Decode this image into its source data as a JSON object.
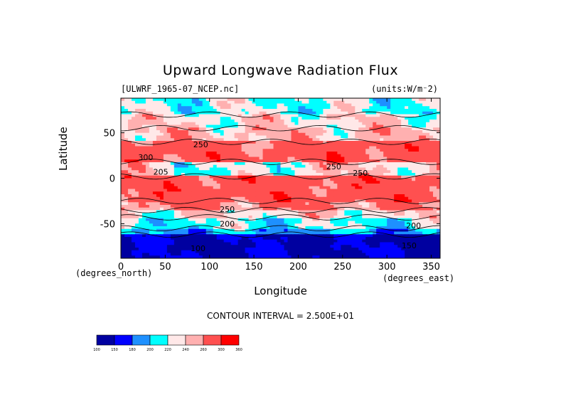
{
  "chart_data": {
    "type": "heatmap",
    "title": "Upward Longwave Radiation Flux",
    "subtitle_left": "[ULWRF_1965-07_NCEP.nc]",
    "subtitle_right": "(units:W/m⁻2)",
    "xlabel": "Longitude",
    "ylabel": "Latitude",
    "x_unit": "(degrees_east)",
    "y_unit": "(degrees_north)",
    "xlim": [
      0,
      360
    ],
    "ylim": [
      -90,
      90
    ],
    "x_ticks": [
      "0",
      "50",
      "100",
      "150",
      "200",
      "250",
      "300",
      "350"
    ],
    "x_tick_values": [
      0,
      50,
      100,
      150,
      200,
      250,
      300,
      350
    ],
    "y_ticks": [
      "50",
      "0",
      "-50"
    ],
    "y_tick_values": [
      50,
      0,
      -50
    ],
    "contour_interval_text": "CONTOUR INTERVAL = 2.500E+01",
    "colorbar": {
      "labels": [
        "100",
        "150",
        "180",
        "200",
        "220",
        "240",
        "260",
        "300",
        "360"
      ],
      "colors": [
        "#0000a0",
        "#0000ff",
        "#1e90ff",
        "#00ffff",
        "#ffe8e8",
        "#ffb0b0",
        "#ff5050",
        "#ff0000"
      ]
    },
    "contour_labels": [
      {
        "text": "250",
        "lon": 90,
        "lat": 37
      },
      {
        "text": "300",
        "lon": 28,
        "lat": 23
      },
      {
        "text": "205",
        "lon": 45,
        "lat": 7
      },
      {
        "text": "250",
        "lon": 240,
        "lat": 13
      },
      {
        "text": "250",
        "lon": 270,
        "lat": 6
      },
      {
        "text": "250",
        "lon": 120,
        "lat": -34
      },
      {
        "text": "200",
        "lon": 120,
        "lat": -50
      },
      {
        "text": "200",
        "lon": 330,
        "lat": -52
      },
      {
        "text": "100",
        "lon": 87,
        "lat": -77
      },
      {
        "text": "150",
        "lon": 325,
        "lat": -74
      }
    ],
    "zonal_bands": [
      {
        "lat": [
          70,
          90
        ],
        "value": 220
      },
      {
        "lat": [
          55,
          70
        ],
        "value": 235
      },
      {
        "lat": [
          40,
          55
        ],
        "value": 245
      },
      {
        "lat": [
          18,
          40
        ],
        "value": 275
      },
      {
        "lat": [
          2,
          18
        ],
        "value": 240
      },
      {
        "lat": [
          -25,
          2
        ],
        "value": 280
      },
      {
        "lat": [
          -35,
          -25
        ],
        "value": 262
      },
      {
        "lat": [
          -43,
          -35
        ],
        "value": 235
      },
      {
        "lat": [
          -55,
          -43
        ],
        "value": 215
      },
      {
        "lat": [
          -62,
          -55
        ],
        "value": 195
      },
      {
        "lat": [
          -90,
          -62
        ],
        "value": 145
      }
    ]
  }
}
